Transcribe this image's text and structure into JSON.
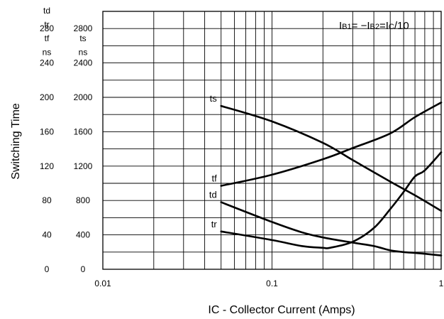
{
  "chart_data": {
    "type": "line",
    "title": "",
    "xlabel": "IC - Collector Current (Amps)",
    "ylabel": "Switching Time",
    "xscale": "log",
    "xlim": [
      0.01,
      1
    ],
    "x_ticks": [
      "0.01",
      "0.1",
      "1"
    ],
    "left_axis": {
      "unit_lines": [
        "td",
        "tr",
        "tf",
        "ns"
      ],
      "ticks": [
        "280",
        "240",
        "200",
        "160",
        "120",
        "80",
        "40",
        "0"
      ],
      "ylim": [
        0,
        300
      ]
    },
    "right_axis": {
      "unit_lines": [
        "ts",
        "ns"
      ],
      "ticks": [
        "2800",
        "2400",
        "2000",
        "1600",
        "1200",
        "800",
        "400",
        "0"
      ],
      "ylim": [
        0,
        3000
      ]
    },
    "condition": {
      "parts": [
        {
          "t": "I",
          "sub": false
        },
        {
          "t": "B1",
          "sub": true
        },
        {
          "t": "= −I",
          "sub": false
        },
        {
          "t": "B2",
          "sub": true
        },
        {
          "t": "=I",
          "sub": false
        },
        {
          "t": "C",
          "sub": true
        },
        {
          "t": "/10",
          "sub": false
        }
      ]
    },
    "grid": true,
    "series": [
      {
        "name": "ts",
        "axis": "right",
        "x": [
          0.05,
          0.1,
          0.2,
          0.3,
          0.5,
          0.7,
          1.0
        ],
        "values": [
          1900,
          1720,
          1470,
          1270,
          1020,
          860,
          680
        ]
      },
      {
        "name": "tf",
        "axis": "left",
        "x": [
          0.05,
          0.1,
          0.2,
          0.3,
          0.5,
          0.7,
          1.0
        ],
        "values": [
          97,
          110,
          128,
          141,
          158,
          177,
          194
        ]
      },
      {
        "name": "td",
        "axis": "left",
        "x": [
          0.05,
          0.1,
          0.15,
          0.2,
          0.3,
          0.4,
          0.5,
          0.6,
          0.7,
          0.8,
          1.0
        ],
        "values": [
          78,
          55,
          43,
          37,
          31,
          27,
          22,
          20,
          19,
          18,
          16
        ]
      },
      {
        "name": "tr",
        "axis": "left",
        "x": [
          0.05,
          0.1,
          0.15,
          0.2,
          0.22,
          0.3,
          0.4,
          0.5,
          0.6,
          0.7,
          0.8,
          1.0
        ],
        "values": [
          44,
          34,
          27,
          25,
          25,
          32,
          48,
          70,
          90,
          108,
          115,
          136
        ]
      }
    ]
  }
}
